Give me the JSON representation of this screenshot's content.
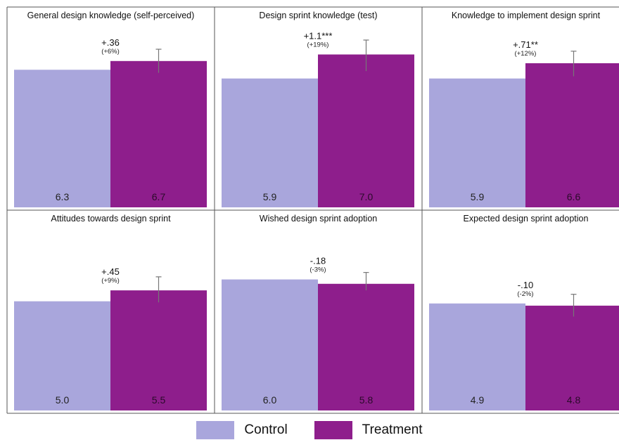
{
  "colors": {
    "control": "#a9a6dc",
    "treatment": "#8e1e8c",
    "frame": "#555555",
    "error_bar": "#777777"
  },
  "legend": {
    "control": "Control",
    "treatment": "Treatment"
  },
  "chart_data": [
    {
      "type": "bar",
      "title": "General design knowledge (self-perceived)",
      "categories": [
        "Control",
        "Treatment"
      ],
      "values": [
        6.3,
        6.7
      ],
      "value_labels": [
        "6.3",
        "6.7"
      ],
      "treatment_error": [
        6.16,
        7.24
      ],
      "effect": "+.36",
      "effect_pct": "(+6%)"
    },
    {
      "type": "bar",
      "title": "Design sprint knowledge (test)",
      "categories": [
        "Control",
        "Treatment"
      ],
      "values": [
        5.9,
        7.0
      ],
      "value_labels": [
        "5.9",
        "7.0"
      ],
      "treatment_error": [
        6.24,
        7.66
      ],
      "effect": "+1.1***",
      "effect_pct": "(+19%)"
    },
    {
      "type": "bar",
      "title": "Knowledge to implement design sprint",
      "categories": [
        "Control",
        "Treatment"
      ],
      "values": [
        5.9,
        6.6
      ],
      "value_labels": [
        "5.9",
        "6.6"
      ],
      "treatment_error": [
        6.0,
        7.15
      ],
      "effect": "+.71**",
      "effect_pct": "(+12%)"
    },
    {
      "type": "bar",
      "title": "Attitudes towards design sprint",
      "categories": [
        "Control",
        "Treatment"
      ],
      "values": [
        5.0,
        5.5
      ],
      "value_labels": [
        "5.0",
        "5.5"
      ],
      "treatment_error": [
        4.95,
        6.12
      ],
      "effect": "+.45",
      "effect_pct": "(+9%)"
    },
    {
      "type": "bar",
      "title": "Wished design sprint adoption",
      "categories": [
        "Control",
        "Treatment"
      ],
      "values": [
        6.0,
        5.8
      ],
      "value_labels": [
        "6.0",
        "5.8"
      ],
      "treatment_error": [
        5.5,
        6.32
      ],
      "effect": "-.18",
      "effect_pct": "(-3%)"
    },
    {
      "type": "bar",
      "title": "Expected design sprint adoption",
      "categories": [
        "Control",
        "Treatment"
      ],
      "values": [
        4.9,
        4.8
      ],
      "value_labels": [
        "4.9",
        "4.8"
      ],
      "treatment_error": [
        4.3,
        5.32
      ],
      "effect": "-.10",
      "effect_pct": "(-2%)"
    }
  ]
}
